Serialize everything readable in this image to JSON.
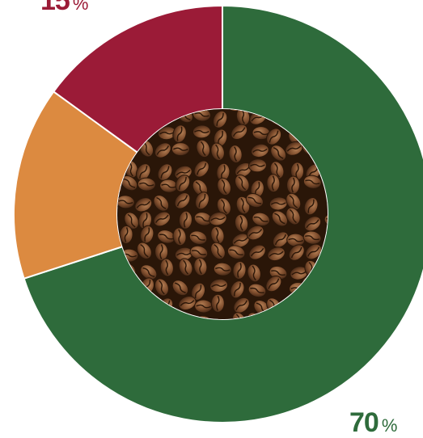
{
  "chart_data": {
    "type": "pie",
    "donut": true,
    "center_image": "coffee-beans",
    "slices": [
      {
        "value": 70,
        "color": "#2e6b3b"
      },
      {
        "value": 15,
        "color": "#dc8a40"
      },
      {
        "value": 15,
        "color": "#9b1b37"
      }
    ],
    "labels": [
      {
        "number": "15",
        "unit": "%",
        "color": "#9b1b37"
      },
      {
        "number": "70",
        "unit": "%",
        "color": "#2e6b3b"
      }
    ]
  }
}
